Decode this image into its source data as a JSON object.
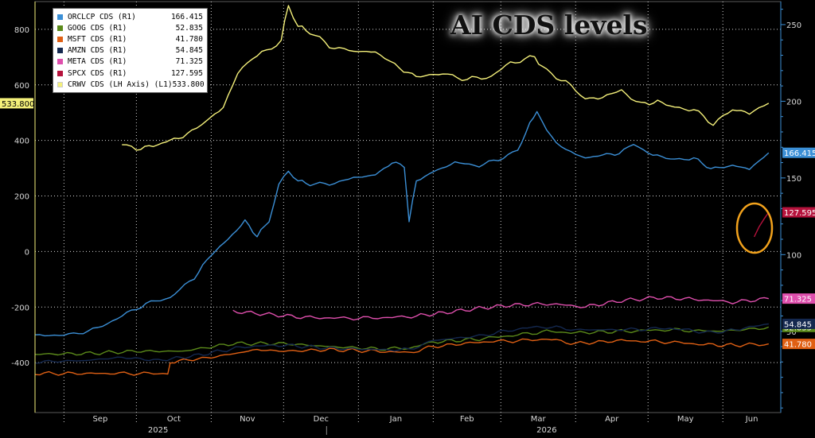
{
  "title": "AI CDS levels",
  "legend": [
    {
      "label": "ORCLCP CDS (R1)",
      "value": "166.415"
    },
    {
      "label": "GOOG CDS (R1)",
      "value": "52.835"
    },
    {
      "label": "MSFT CDS (R1)",
      "value": "41.780"
    },
    {
      "label": "AMZN CDS (R1)",
      "value": "54.845"
    },
    {
      "label": "META CDS (R1)",
      "value": "71.325"
    },
    {
      "label": "SPCX CDS  (R1)",
      "value": "127.595"
    },
    {
      "label": "CRWV CDS (LH Axis) (L1)",
      "value": "533.800"
    }
  ],
  "chart_data": {
    "type": "line",
    "title": "AI CDS levels",
    "x_months": [
      "Sep",
      "Oct",
      "Nov",
      "Dec",
      "Jan",
      "Feb",
      "Mar",
      "Apr",
      "May",
      "Jun"
    ],
    "x_years": [
      "2025",
      "2026"
    ],
    "x_range": [
      "2025-08-20",
      "2026-06-25"
    ],
    "left_axis": {
      "ticks": [
        -400,
        -200,
        0,
        200,
        400,
        600,
        800
      ],
      "range": [
        -580,
        900
      ]
    },
    "right_axis": {
      "ticks": [
        50,
        100,
        150,
        200,
        250
      ],
      "range": [
        -3,
        265
      ]
    },
    "grid": true,
    "legend_position": "top-left",
    "series": [
      {
        "name": "ORCLCP CDS (R1)",
        "axis": "right",
        "color": "#3b8fd6",
        "last": "166.415",
        "points": [
          [
            "2025-08-20",
            47
          ],
          [
            "2025-09-05",
            48
          ],
          [
            "2025-09-15",
            52
          ],
          [
            "2025-09-25",
            60
          ],
          [
            "2025-10-05",
            68
          ],
          [
            "2025-10-15",
            72
          ],
          [
            "2025-10-25",
            85
          ],
          [
            "2025-11-01",
            100
          ],
          [
            "2025-11-08",
            110
          ],
          [
            "2025-11-15",
            122
          ],
          [
            "2025-11-20",
            112
          ],
          [
            "2025-11-25",
            122
          ],
          [
            "2025-11-29",
            145
          ],
          [
            "2025-12-03",
            155
          ],
          [
            "2025-12-07",
            148
          ],
          [
            "2025-12-12",
            146
          ],
          [
            "2025-12-20",
            146
          ],
          [
            "2025-12-30",
            150
          ],
          [
            "2026-01-08",
            152
          ],
          [
            "2026-01-15",
            160
          ],
          [
            "2026-01-20",
            158
          ],
          [
            "2026-01-22",
            122
          ],
          [
            "2026-01-25",
            148
          ],
          [
            "2026-02-01",
            154
          ],
          [
            "2026-02-10",
            160
          ],
          [
            "2026-02-20",
            158
          ],
          [
            "2026-02-28",
            162
          ],
          [
            "2026-03-08",
            168
          ],
          [
            "2026-03-13",
            185
          ],
          [
            "2026-03-16",
            194
          ],
          [
            "2026-03-20",
            180
          ],
          [
            "2026-03-28",
            168
          ],
          [
            "2026-04-05",
            163
          ],
          [
            "2026-04-12",
            165
          ],
          [
            "2026-04-19",
            166
          ],
          [
            "2026-04-25",
            172
          ],
          [
            "2026-05-03",
            165
          ],
          [
            "2026-05-12",
            162
          ],
          [
            "2026-05-20",
            163
          ],
          [
            "2026-05-27",
            156
          ],
          [
            "2026-06-05",
            158
          ],
          [
            "2026-06-12",
            156
          ],
          [
            "2026-06-20",
            166.4
          ]
        ]
      },
      {
        "name": "GOOG CDS (R1)",
        "axis": "right",
        "color": "#5b8a1a",
        "last": "52.835",
        "points": [
          [
            "2025-08-20",
            35
          ],
          [
            "2025-09-10",
            35.5
          ],
          [
            "2025-10-01",
            37
          ],
          [
            "2025-10-20",
            37
          ],
          [
            "2025-11-10",
            42
          ],
          [
            "2025-12-01",
            42
          ],
          [
            "2025-12-20",
            40
          ],
          [
            "2026-01-10",
            38.5
          ],
          [
            "2026-01-22",
            39
          ],
          [
            "2026-02-01",
            43
          ],
          [
            "2026-02-20",
            45
          ],
          [
            "2026-03-10",
            48
          ],
          [
            "2026-03-20",
            50
          ],
          [
            "2026-04-01",
            49
          ],
          [
            "2026-04-20",
            50
          ],
          [
            "2026-05-10",
            51
          ],
          [
            "2026-05-28",
            50
          ],
          [
            "2026-06-10",
            51
          ],
          [
            "2026-06-20",
            52.8
          ]
        ]
      },
      {
        "name": "MSFT CDS (R1)",
        "axis": "right",
        "color": "#e06014",
        "last": "41.780",
        "points": [
          [
            "2025-08-20",
            22.5
          ],
          [
            "2025-09-20",
            22.5
          ],
          [
            "2025-10-10",
            22.5
          ],
          [
            "2025-10-14",
            22.5
          ],
          [
            "2025-10-15",
            30
          ],
          [
            "2025-11-01",
            33
          ],
          [
            "2025-11-20",
            38
          ],
          [
            "2025-12-01",
            37
          ],
          [
            "2025-12-20",
            38
          ],
          [
            "2026-01-10",
            37
          ],
          [
            "2026-01-22",
            36
          ],
          [
            "2026-02-01",
            40
          ],
          [
            "2026-02-20",
            43
          ],
          [
            "2026-03-10",
            44
          ],
          [
            "2026-03-20",
            45
          ],
          [
            "2026-04-01",
            42
          ],
          [
            "2026-04-20",
            44
          ],
          [
            "2026-05-10",
            43
          ],
          [
            "2026-05-28",
            41
          ],
          [
            "2026-06-10",
            41
          ],
          [
            "2026-06-20",
            41.8
          ]
        ]
      },
      {
        "name": "AMZN CDS (R1)",
        "axis": "right",
        "color": "#14284f",
        "last": "54.845",
        "points": [
          [
            "2025-08-20",
            30
          ],
          [
            "2025-09-10",
            31
          ],
          [
            "2025-09-25",
            33
          ],
          [
            "2025-10-10",
            31
          ],
          [
            "2025-10-25",
            34
          ],
          [
            "2025-11-15",
            40
          ],
          [
            "2025-12-01",
            41
          ],
          [
            "2025-12-20",
            39
          ],
          [
            "2026-01-10",
            38
          ],
          [
            "2026-01-22",
            38
          ],
          [
            "2026-02-01",
            44
          ],
          [
            "2026-02-20",
            47
          ],
          [
            "2026-03-10",
            52
          ],
          [
            "2026-03-20",
            53
          ],
          [
            "2026-04-01",
            51
          ],
          [
            "2026-04-20",
            51
          ],
          [
            "2026-05-10",
            52
          ],
          [
            "2026-05-28",
            49
          ],
          [
            "2026-06-10",
            52
          ],
          [
            "2026-06-20",
            54.8
          ]
        ]
      },
      {
        "name": "META CDS (R1)",
        "axis": "right",
        "color": "#df4fad",
        "last": "71.325",
        "points": [
          [
            "2025-11-10",
            63
          ],
          [
            "2025-11-25",
            61
          ],
          [
            "2025-12-10",
            59
          ],
          [
            "2025-12-30",
            58.5
          ],
          [
            "2026-01-15",
            59
          ],
          [
            "2026-01-25",
            60
          ],
          [
            "2026-02-05",
            62
          ],
          [
            "2026-02-20",
            65
          ],
          [
            "2026-03-05",
            67
          ],
          [
            "2026-03-20",
            68
          ],
          [
            "2026-04-05",
            66
          ],
          [
            "2026-04-20",
            70
          ],
          [
            "2026-05-05",
            72
          ],
          [
            "2026-05-20",
            71
          ],
          [
            "2026-06-05",
            69
          ],
          [
            "2026-06-20",
            71.3
          ]
        ]
      },
      {
        "name": "SPCX CDS  (R1)",
        "axis": "right",
        "color": "#b5123c",
        "last": "127.595",
        "points": [
          [
            "2026-06-14",
            112
          ],
          [
            "2026-06-20",
            127.6
          ]
        ]
      },
      {
        "name": "CRWV CDS (LH Axis) (L1)",
        "axis": "left",
        "color": "#f4f07a",
        "last": "533.800",
        "points": [
          [
            "2025-09-25",
            385
          ],
          [
            "2025-10-01",
            370
          ],
          [
            "2025-10-08",
            380
          ],
          [
            "2025-10-15",
            400
          ],
          [
            "2025-10-22",
            420
          ],
          [
            "2025-10-30",
            470
          ],
          [
            "2025-11-06",
            520
          ],
          [
            "2025-11-12",
            640
          ],
          [
            "2025-11-18",
            700
          ],
          [
            "2025-11-24",
            720
          ],
          [
            "2025-11-30",
            760
          ],
          [
            "2025-12-03",
            890
          ],
          [
            "2025-12-07",
            810
          ],
          [
            "2025-12-12",
            790
          ],
          [
            "2025-12-20",
            740
          ],
          [
            "2025-12-30",
            720
          ],
          [
            "2026-01-08",
            720
          ],
          [
            "2026-01-18",
            660
          ],
          [
            "2026-01-25",
            630
          ],
          [
            "2026-02-05",
            640
          ],
          [
            "2026-02-15",
            620
          ],
          [
            "2026-02-25",
            630
          ],
          [
            "2026-03-05",
            680
          ],
          [
            "2026-03-15",
            700
          ],
          [
            "2026-03-20",
            650
          ],
          [
            "2026-03-28",
            610
          ],
          [
            "2026-04-05",
            550
          ],
          [
            "2026-04-12",
            555
          ],
          [
            "2026-04-20",
            580
          ],
          [
            "2026-04-28",
            530
          ],
          [
            "2026-05-05",
            540
          ],
          [
            "2026-05-12",
            520
          ],
          [
            "2026-05-20",
            510
          ],
          [
            "2026-05-28",
            460
          ],
          [
            "2026-06-05",
            510
          ],
          [
            "2026-06-12",
            500
          ],
          [
            "2026-06-20",
            533.8
          ]
        ]
      }
    ]
  }
}
